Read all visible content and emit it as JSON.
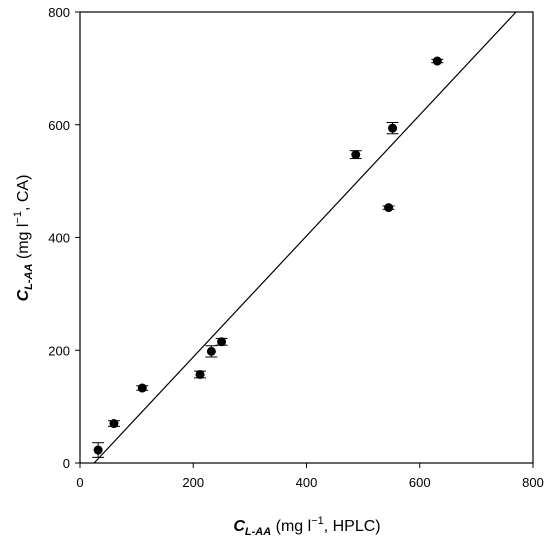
{
  "chart_data": {
    "type": "scatter",
    "title": "",
    "xlabel": {
      "symbol": "C",
      "subscript": "L-AA",
      "paren_open": " (mg l",
      "exponent": "−1",
      "paren_close": ", HPLC)"
    },
    "ylabel": {
      "symbol": "C",
      "subscript": "L-AA",
      "paren_open": " (mg l",
      "exponent": "−1",
      "paren_close": ", CA)"
    },
    "xlim": [
      0,
      800
    ],
    "ylim": [
      0,
      800
    ],
    "xticks": [
      0,
      200,
      400,
      600,
      800
    ],
    "yticks": [
      0,
      200,
      400,
      600,
      800
    ],
    "xtick_labels": [
      "0",
      "200",
      "400",
      "600",
      "800"
    ],
    "ytick_labels": [
      "0",
      "200",
      "400",
      "600",
      "800"
    ],
    "grid": false,
    "points": [
      {
        "x": 32,
        "y": 23,
        "err": 13
      },
      {
        "x": 60,
        "y": 70,
        "err": 5
      },
      {
        "x": 110,
        "y": 133,
        "err": 4
      },
      {
        "x": 212,
        "y": 157,
        "err": 6
      },
      {
        "x": 232,
        "y": 198,
        "err": 10
      },
      {
        "x": 250,
        "y": 215,
        "err": 6
      },
      {
        "x": 487,
        "y": 547,
        "err": 7
      },
      {
        "x": 545,
        "y": 453,
        "err": 3
      },
      {
        "x": 552,
        "y": 594,
        "err": 10
      },
      {
        "x": 631,
        "y": 713,
        "err": 3
      }
    ],
    "fit_line": {
      "x": [
        25,
        770
      ],
      "y": [
        0,
        800
      ]
    },
    "colors": {
      "marker": "#000000",
      "line": "#000000",
      "axes": "#000000"
    }
  }
}
